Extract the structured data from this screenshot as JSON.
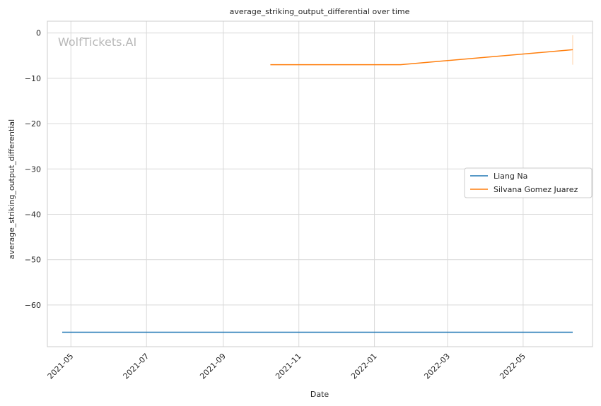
{
  "chart_data": {
    "type": "line",
    "title": "average_striking_output_differential over time",
    "xlabel": "Date",
    "ylabel": "average_striking_output_differential",
    "watermark": "WolfTickets.AI",
    "x_ticks": [
      "2021-05",
      "2021-07",
      "2021-09",
      "2021-11",
      "2022-01",
      "2022-03",
      "2022-05"
    ],
    "x_tick_dates": [
      "2021-05-01",
      "2021-07-01",
      "2021-09-01",
      "2021-11-01",
      "2022-01-01",
      "2022-03-01",
      "2022-05-01"
    ],
    "xlim": [
      "2021-04-12",
      "2022-06-26"
    ],
    "y_ticks": [
      0,
      -10,
      -20,
      -30,
      -40,
      -50,
      -60
    ],
    "y_tick_labels": [
      "0",
      "−10",
      "−20",
      "−30",
      "−40",
      "−50",
      "−60"
    ],
    "ylim": [
      -69.2,
      2.6
    ],
    "grid": true,
    "legend_position": "center-right",
    "series": [
      {
        "name": "Liang Na",
        "color": "#1f77b4",
        "x": [
          "2021-04-24",
          "2022-06-10"
        ],
        "y": [
          -66,
          -66
        ]
      },
      {
        "name": "Silvana Gomez Juarez",
        "color": "#ff7f0e",
        "x": [
          "2021-10-09",
          "2022-01-22",
          "2022-06-10"
        ],
        "y": [
          -7,
          -7,
          -3.7
        ],
        "error_band": {
          "x": "2022-06-10",
          "low": -7,
          "high": -0.5
        }
      }
    ]
  }
}
